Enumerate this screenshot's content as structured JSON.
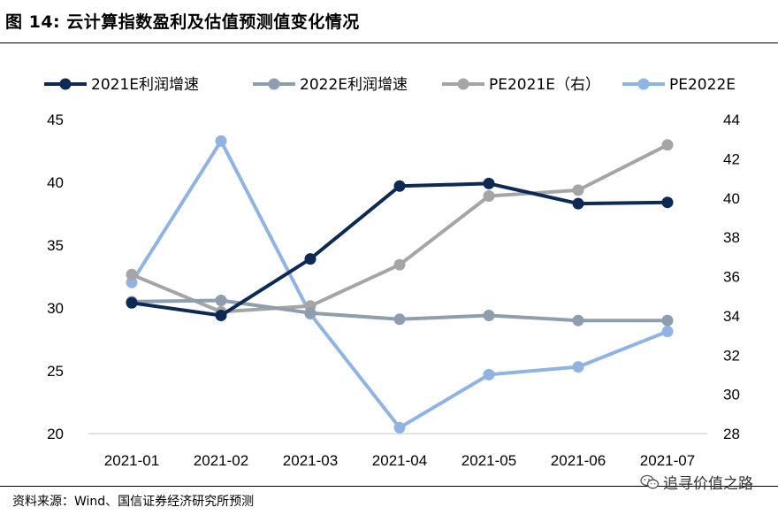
{
  "figure": {
    "title": "图 14: 云计算指数盈利及估值预测值变化情况",
    "source": "资料来源：Wind、国信证券经济研究所预测",
    "watermark": "追寻价值之路",
    "watermark_icon": "wechat-icon"
  },
  "chart_data": {
    "type": "line",
    "categories": [
      "2021-01",
      "2021-02",
      "2021-03",
      "2021-04",
      "2021-05",
      "2021-06",
      "2021-07"
    ],
    "y_left": {
      "ticks": [
        20,
        25,
        30,
        35,
        40,
        45
      ],
      "range": [
        20,
        45
      ]
    },
    "y_right": {
      "ticks": [
        28,
        30,
        32,
        34,
        36,
        38,
        40,
        42,
        44
      ],
      "range": [
        28,
        44
      ]
    },
    "legend_position": "top",
    "grid": false,
    "series": [
      {
        "name": "2021E利润增速",
        "axis": "left",
        "color": "#0d2a54",
        "values": [
          30.4,
          29.4,
          33.9,
          39.7,
          39.9,
          38.3,
          38.4
        ]
      },
      {
        "name": "2022E利润增速",
        "axis": "left",
        "color": "#8e9eae",
        "values": [
          30.5,
          30.6,
          29.6,
          29.1,
          29.4,
          29.0,
          29.0
        ]
      },
      {
        "name": "PE2021E（右）",
        "axis": "right",
        "color": "#a5a5a5",
        "values": [
          36.1,
          34.2,
          34.5,
          36.6,
          40.1,
          40.4,
          42.7
        ]
      },
      {
        "name": "PE2022E",
        "axis": "right",
        "color": "#8fb4e3",
        "values": [
          35.7,
          42.9,
          34.1,
          28.3,
          31.0,
          31.4,
          33.2
        ]
      }
    ]
  }
}
